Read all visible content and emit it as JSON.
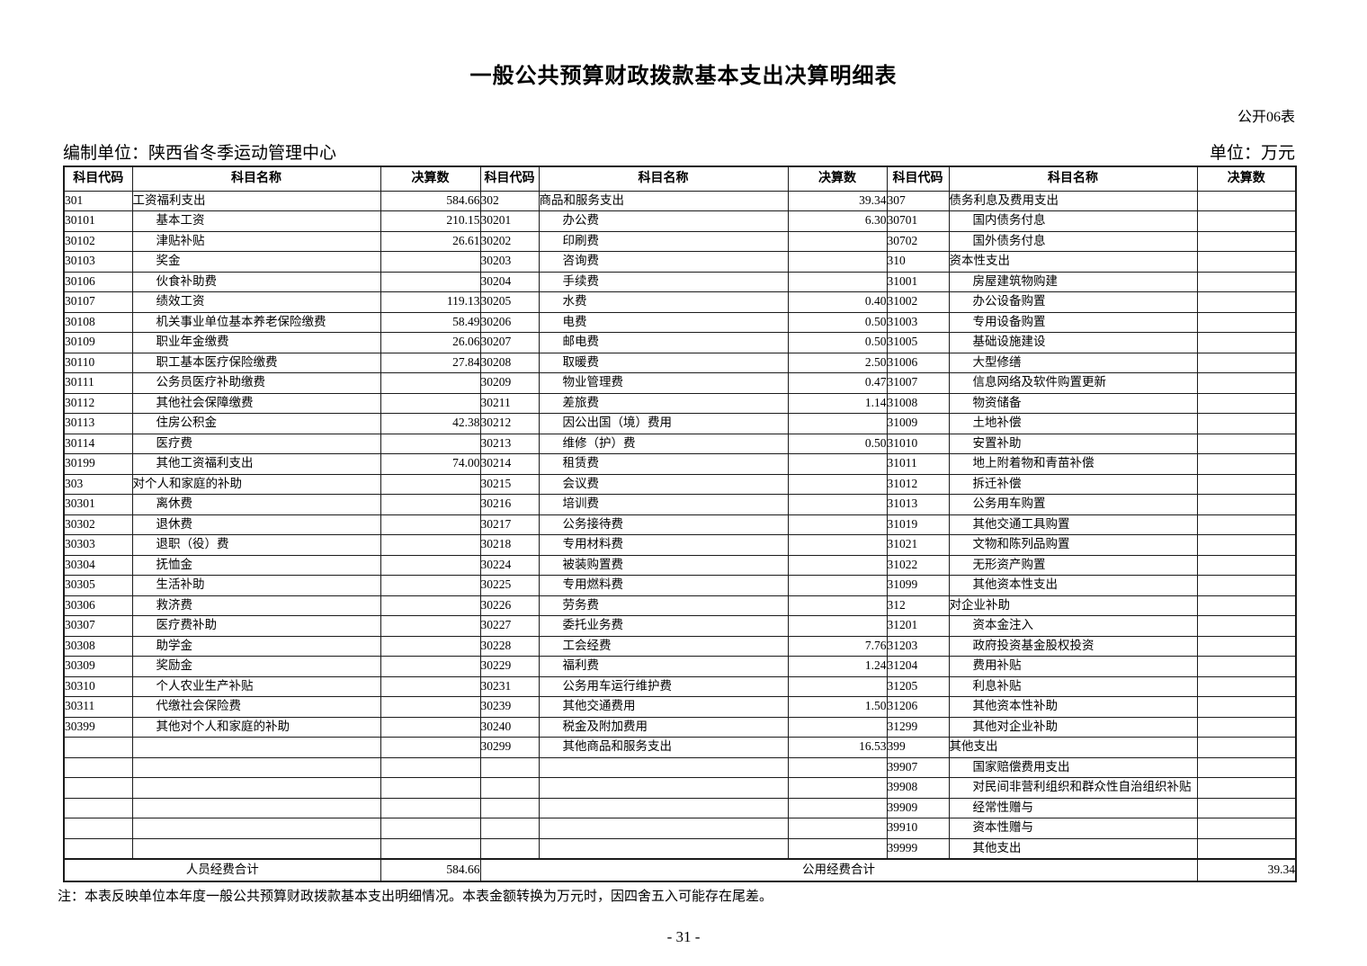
{
  "page": {
    "title": "一般公共预算财政拨款基本支出决算明细表",
    "form_label": "公开06表",
    "prepared_by": "编制单位：陕西省冬季运动管理中心",
    "currency_unit": "单位：万元",
    "note": "注：本表反映单位本年度一般公共预算财政拨款基本支出明细情况。本表金额转换为万元时，因四舍五入可能存在尾差。",
    "page_number": "- 31 -"
  },
  "table": {
    "headers": [
      "科目代码",
      "科目名称",
      "决算数",
      "科目代码",
      "科目名称",
      "决算数",
      "科目代码",
      "科目名称",
      "决算数"
    ],
    "rows": [
      [
        [
          "301",
          "工资福利支出",
          "584.66",
          0
        ],
        [
          "302",
          "商品和服务支出",
          "39.34",
          0
        ],
        [
          "307",
          "债务利息及费用支出",
          "",
          0
        ]
      ],
      [
        [
          "30101",
          "基本工资",
          "210.15",
          1
        ],
        [
          "30201",
          "办公费",
          "6.30",
          1
        ],
        [
          "30701",
          "国内债务付息",
          "",
          1
        ]
      ],
      [
        [
          "30102",
          "津贴补贴",
          "26.61",
          1
        ],
        [
          "30202",
          "印刷费",
          "",
          1
        ],
        [
          "30702",
          "国外债务付息",
          "",
          1
        ]
      ],
      [
        [
          "30103",
          "奖金",
          "",
          1
        ],
        [
          "30203",
          "咨询费",
          "",
          1
        ],
        [
          "310",
          "资本性支出",
          "",
          0
        ]
      ],
      [
        [
          "30106",
          "伙食补助费",
          "",
          1
        ],
        [
          "30204",
          "手续费",
          "",
          1
        ],
        [
          "31001",
          "房屋建筑物购建",
          "",
          1
        ]
      ],
      [
        [
          "30107",
          "绩效工资",
          "119.13",
          1
        ],
        [
          "30205",
          "水费",
          "0.40",
          1
        ],
        [
          "31002",
          "办公设备购置",
          "",
          1
        ]
      ],
      [
        [
          "30108",
          "机关事业单位基本养老保险缴费",
          "58.49",
          1
        ],
        [
          "30206",
          "电费",
          "0.50",
          1
        ],
        [
          "31003",
          "专用设备购置",
          "",
          1
        ]
      ],
      [
        [
          "30109",
          "职业年金缴费",
          "26.06",
          1
        ],
        [
          "30207",
          "邮电费",
          "0.50",
          1
        ],
        [
          "31005",
          "基础设施建设",
          "",
          1
        ]
      ],
      [
        [
          "30110",
          "职工基本医疗保险缴费",
          "27.84",
          1
        ],
        [
          "30208",
          "取暖费",
          "2.50",
          1
        ],
        [
          "31006",
          "大型修缮",
          "",
          1
        ]
      ],
      [
        [
          "30111",
          "公务员医疗补助缴费",
          "",
          1
        ],
        [
          "30209",
          "物业管理费",
          "0.47",
          1
        ],
        [
          "31007",
          "信息网络及软件购置更新",
          "",
          1
        ]
      ],
      [
        [
          "30112",
          "其他社会保障缴费",
          "",
          1
        ],
        [
          "30211",
          "差旅费",
          "1.14",
          1
        ],
        [
          "31008",
          "物资储备",
          "",
          1
        ]
      ],
      [
        [
          "30113",
          "住房公积金",
          "42.38",
          1
        ],
        [
          "30212",
          "因公出国（境）费用",
          "",
          1
        ],
        [
          "31009",
          "土地补偿",
          "",
          1
        ]
      ],
      [
        [
          "30114",
          "医疗费",
          "",
          1
        ],
        [
          "30213",
          "维修（护）费",
          "0.50",
          1
        ],
        [
          "31010",
          "安置补助",
          "",
          1
        ]
      ],
      [
        [
          "30199",
          "其他工资福利支出",
          "74.00",
          1
        ],
        [
          "30214",
          "租赁费",
          "",
          1
        ],
        [
          "31011",
          "地上附着物和青苗补偿",
          "",
          1
        ]
      ],
      [
        [
          "303",
          "对个人和家庭的补助",
          "",
          0
        ],
        [
          "30215",
          "会议费",
          "",
          1
        ],
        [
          "31012",
          "拆迁补偿",
          "",
          1
        ]
      ],
      [
        [
          "30301",
          "离休费",
          "",
          1
        ],
        [
          "30216",
          "培训费",
          "",
          1
        ],
        [
          "31013",
          "公务用车购置",
          "",
          1
        ]
      ],
      [
        [
          "30302",
          "退休费",
          "",
          1
        ],
        [
          "30217",
          "公务接待费",
          "",
          1
        ],
        [
          "31019",
          "其他交通工具购置",
          "",
          1
        ]
      ],
      [
        [
          "30303",
          "退职（役）费",
          "",
          1
        ],
        [
          "30218",
          "专用材料费",
          "",
          1
        ],
        [
          "31021",
          "文物和陈列品购置",
          "",
          1
        ]
      ],
      [
        [
          "30304",
          "抚恤金",
          "",
          1
        ],
        [
          "30224",
          "被装购置费",
          "",
          1
        ],
        [
          "31022",
          "无形资产购置",
          "",
          1
        ]
      ],
      [
        [
          "30305",
          "生活补助",
          "",
          1
        ],
        [
          "30225",
          "专用燃料费",
          "",
          1
        ],
        [
          "31099",
          "其他资本性支出",
          "",
          1
        ]
      ],
      [
        [
          "30306",
          "救济费",
          "",
          1
        ],
        [
          "30226",
          "劳务费",
          "",
          1
        ],
        [
          "312",
          "对企业补助",
          "",
          0
        ]
      ],
      [
        [
          "30307",
          "医疗费补助",
          "",
          1
        ],
        [
          "30227",
          "委托业务费",
          "",
          1
        ],
        [
          "31201",
          "资本金注入",
          "",
          1
        ]
      ],
      [
        [
          "30308",
          "助学金",
          "",
          1
        ],
        [
          "30228",
          "工会经费",
          "7.76",
          1
        ],
        [
          "31203",
          "政府投资基金股权投资",
          "",
          1
        ]
      ],
      [
        [
          "30309",
          "奖励金",
          "",
          1
        ],
        [
          "30229",
          "福利费",
          "1.24",
          1
        ],
        [
          "31204",
          "费用补贴",
          "",
          1
        ]
      ],
      [
        [
          "30310",
          "个人农业生产补贴",
          "",
          1
        ],
        [
          "30231",
          "公务用车运行维护费",
          "",
          1
        ],
        [
          "31205",
          "利息补贴",
          "",
          1
        ]
      ],
      [
        [
          "30311",
          "代缴社会保险费",
          "",
          1
        ],
        [
          "30239",
          "其他交通费用",
          "1.50",
          1
        ],
        [
          "31206",
          "其他资本性补助",
          "",
          1
        ]
      ],
      [
        [
          "30399",
          "其他对个人和家庭的补助",
          "",
          1
        ],
        [
          "30240",
          "税金及附加费用",
          "",
          1
        ],
        [
          "31299",
          "其他对企业补助",
          "",
          1
        ]
      ],
      [
        [
          "",
          "",
          "",
          0
        ],
        [
          "30299",
          "其他商品和服务支出",
          "16.53",
          1
        ],
        [
          "399",
          "其他支出",
          "",
          0
        ]
      ],
      [
        [
          "",
          "",
          "",
          0
        ],
        [
          "",
          "",
          "",
          0
        ],
        [
          "39907",
          "国家赔偿费用支出",
          "",
          1
        ]
      ],
      [
        [
          "",
          "",
          "",
          0
        ],
        [
          "",
          "",
          "",
          0
        ],
        [
          "39908",
          "对民间非营利组织和群众性自治组织补贴",
          "",
          1
        ]
      ],
      [
        [
          "",
          "",
          "",
          0
        ],
        [
          "",
          "",
          "",
          0
        ],
        [
          "39909",
          "经常性赠与",
          "",
          1
        ]
      ],
      [
        [
          "",
          "",
          "",
          0
        ],
        [
          "",
          "",
          "",
          0
        ],
        [
          "39910",
          "资本性赠与",
          "",
          1
        ]
      ],
      [
        [
          "",
          "",
          "",
          0
        ],
        [
          "",
          "",
          "",
          0
        ],
        [
          "39999",
          "其他支出",
          "",
          1
        ]
      ]
    ],
    "footer": {
      "personnel_total_label": "人员经费合计",
      "personnel_total_value": "584.66",
      "public_total_label": "公用经费合计",
      "public_total_value": "39.34"
    }
  }
}
